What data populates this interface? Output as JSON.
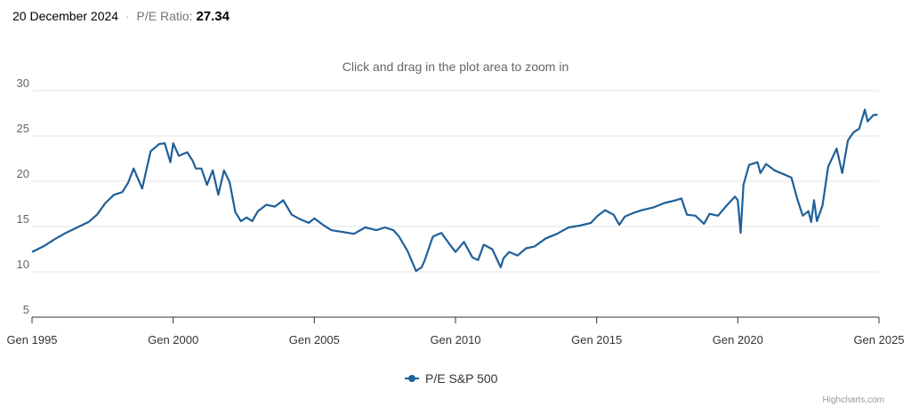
{
  "header": {
    "date": "20 December 2024",
    "separator": "·",
    "label": "P/E Ratio:",
    "value": "27.34"
  },
  "subtitle": "Click and drag in the plot area to zoom in",
  "credit": "Highcharts.com",
  "colors": {
    "series": "#1f5f99",
    "grid": "#e6e6e6",
    "axis": "#333333",
    "tick_label": "#666666"
  },
  "chart_data": {
    "type": "line",
    "title": "",
    "xlabel": "",
    "ylabel": "",
    "ylim": [
      5,
      30
    ],
    "yticks": [
      5,
      10,
      15,
      20,
      25,
      30
    ],
    "xlim": [
      1995.0,
      2025.0
    ],
    "xticks": [
      {
        "value": 1995,
        "label": "Gen 1995"
      },
      {
        "value": 2000,
        "label": "Gen 2000"
      },
      {
        "value": 2005,
        "label": "Gen 2005"
      },
      {
        "value": 2010,
        "label": "Gen 2010"
      },
      {
        "value": 2015,
        "label": "Gen 2015"
      },
      {
        "value": 2020,
        "label": "Gen 2020"
      },
      {
        "value": 2025,
        "label": "Gen 2025"
      }
    ],
    "grid": true,
    "legend": "bottom-center",
    "series": [
      {
        "name": "P/E S&P 500",
        "x": [
          1995.0,
          1995.4,
          1995.8,
          1996.2,
          1996.6,
          1997.0,
          1997.3,
          1997.6,
          1997.9,
          1998.2,
          1998.4,
          1998.6,
          1998.9,
          1999.2,
          1999.5,
          1999.7,
          1999.9,
          2000.0,
          2000.2,
          2000.5,
          2000.7,
          2000.8,
          2001.0,
          2001.2,
          2001.4,
          2001.6,
          2001.8,
          2002.0,
          2002.2,
          2002.4,
          2002.6,
          2002.8,
          2003.0,
          2003.3,
          2003.6,
          2003.9,
          2004.2,
          2004.5,
          2004.8,
          2005.0,
          2005.3,
          2005.6,
          2006.0,
          2006.4,
          2006.8,
          2007.2,
          2007.5,
          2007.8,
          2008.0,
          2008.3,
          2008.6,
          2008.8,
          2008.9,
          2009.2,
          2009.5,
          2009.8,
          2010.0,
          2010.3,
          2010.6,
          2010.8,
          2011.0,
          2011.3,
          2011.6,
          2011.7,
          2011.9,
          2012.2,
          2012.5,
          2012.8,
          2013.2,
          2013.6,
          2014.0,
          2014.4,
          2014.8,
          2015.0,
          2015.3,
          2015.6,
          2015.8,
          2016.0,
          2016.3,
          2016.6,
          2017.0,
          2017.4,
          2017.8,
          2018.0,
          2018.2,
          2018.5,
          2018.8,
          2019.0,
          2019.3,
          2019.6,
          2019.9,
          2020.0,
          2020.1,
          2020.2,
          2020.4,
          2020.7,
          2020.8,
          2021.0,
          2021.3,
          2021.6,
          2021.9,
          2022.1,
          2022.3,
          2022.5,
          2022.6,
          2022.7,
          2022.8,
          2023.0,
          2023.2,
          2023.5,
          2023.7,
          2023.9,
          2024.1,
          2024.3,
          2024.5,
          2024.6,
          2024.8,
          2024.95
        ],
        "y": [
          12.2,
          12.8,
          13.6,
          14.3,
          14.9,
          15.5,
          16.3,
          17.6,
          18.5,
          18.8,
          19.8,
          21.4,
          19.2,
          23.3,
          24.1,
          24.2,
          22.1,
          24.2,
          22.8,
          23.2,
          22.2,
          21.4,
          21.4,
          19.6,
          21.2,
          18.5,
          21.2,
          19.9,
          16.6,
          15.6,
          16.0,
          15.6,
          16.7,
          17.4,
          17.2,
          17.9,
          16.3,
          15.8,
          15.4,
          15.9,
          15.2,
          14.6,
          14.4,
          14.2,
          14.9,
          14.6,
          14.9,
          14.6,
          13.9,
          12.3,
          10.1,
          10.5,
          11.2,
          13.9,
          14.3,
          13.0,
          12.2,
          13.3,
          11.6,
          11.3,
          13.0,
          12.5,
          10.5,
          11.5,
          12.2,
          11.8,
          12.6,
          12.8,
          13.7,
          14.2,
          14.9,
          15.1,
          15.4,
          16.1,
          16.8,
          16.3,
          15.2,
          16.1,
          16.5,
          16.8,
          17.1,
          17.6,
          17.9,
          18.1,
          16.3,
          16.2,
          15.3,
          16.4,
          16.2,
          17.3,
          18.3,
          17.9,
          14.3,
          19.6,
          21.8,
          22.1,
          20.9,
          21.9,
          21.2,
          20.8,
          20.4,
          18.1,
          16.2,
          16.7,
          15.5,
          17.9,
          15.6,
          17.3,
          21.6,
          23.6,
          20.9,
          24.5,
          25.4,
          25.8,
          27.9,
          26.6,
          27.3,
          27.34
        ]
      }
    ]
  }
}
